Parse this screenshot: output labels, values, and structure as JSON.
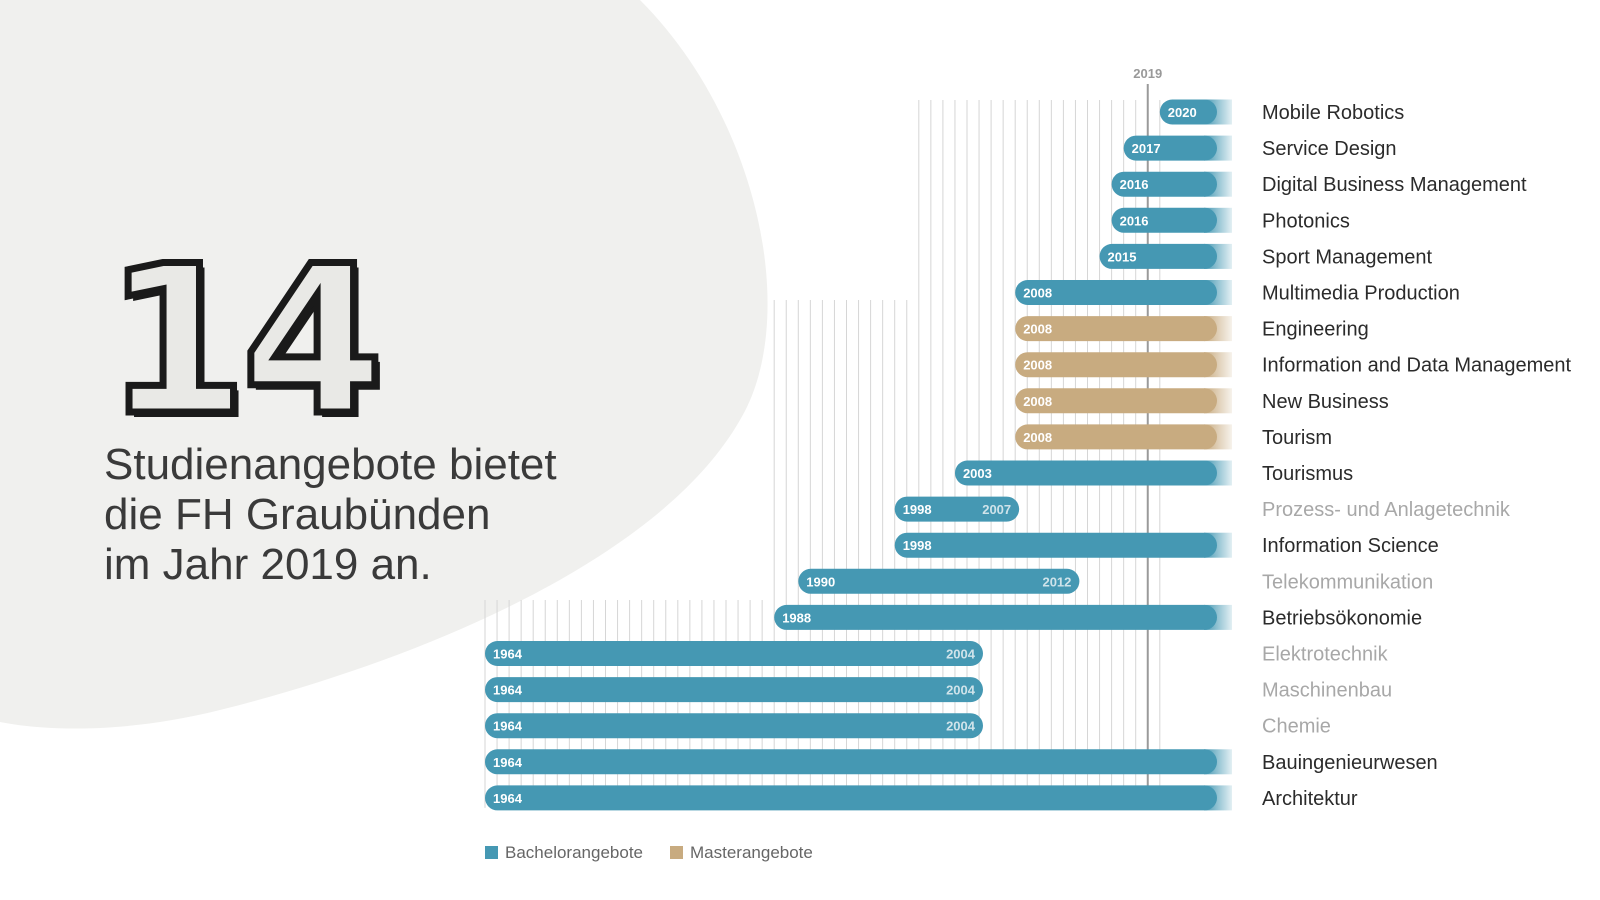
{
  "headline": {
    "number": "14",
    "line1": "Studienangebote bietet",
    "line2": "die FH Graubünden",
    "line3": "im Jahr 2019 an."
  },
  "colors": {
    "bachelor": "#4598b3",
    "master": "#c8ab80",
    "blob": "#f0f0ee",
    "gridline": "#d6d6d6",
    "current_year_line": "#9a9a9a"
  },
  "chart_data": {
    "type": "bar",
    "orientation": "horizontal",
    "x_min": 1964,
    "x_max": 2020,
    "current_year": 2019,
    "current_year_label": "2019",
    "grid": true,
    "legend_position": "bottom-left",
    "legend": [
      {
        "label": "Bachelorangebote",
        "kind": "bachelor"
      },
      {
        "label": "Masterangebote",
        "kind": "master"
      }
    ],
    "rows": [
      {
        "label": "Mobile Robotics",
        "start": 2020,
        "start_label": "2020",
        "end": null,
        "end_label": "",
        "kind": "bachelor",
        "active": true
      },
      {
        "label": "Service Design",
        "start": 2017,
        "start_label": "2017",
        "end": null,
        "end_label": "",
        "kind": "bachelor",
        "active": true
      },
      {
        "label": "Digital Business Management",
        "start": 2016,
        "start_label": "2016",
        "end": null,
        "end_label": "",
        "kind": "bachelor",
        "active": true
      },
      {
        "label": "Photonics",
        "start": 2016,
        "start_label": "2016",
        "end": null,
        "end_label": "",
        "kind": "bachelor",
        "active": true
      },
      {
        "label": "Sport Management",
        "start": 2015,
        "start_label": "2015",
        "end": null,
        "end_label": "",
        "kind": "bachelor",
        "active": true
      },
      {
        "label": "Multimedia Production",
        "start": 2008,
        "start_label": "2008",
        "end": null,
        "end_label": "",
        "kind": "bachelor",
        "active": true
      },
      {
        "label": "Engineering",
        "start": 2008,
        "start_label": "2008",
        "end": null,
        "end_label": "",
        "kind": "master",
        "active": true
      },
      {
        "label": "Information and Data Management",
        "start": 2008,
        "start_label": "2008",
        "end": null,
        "end_label": "",
        "kind": "master",
        "active": true
      },
      {
        "label": "New Business",
        "start": 2008,
        "start_label": "2008",
        "end": null,
        "end_label": "",
        "kind": "master",
        "active": true
      },
      {
        "label": "Tourism",
        "start": 2008,
        "start_label": "2008",
        "end": null,
        "end_label": "",
        "kind": "master",
        "active": true
      },
      {
        "label": "Tourismus",
        "start": 2003,
        "start_label": "2003",
        "end": null,
        "end_label": "",
        "kind": "bachelor",
        "active": true
      },
      {
        "label": "Prozess- und Anlagetechnik",
        "start": 1998,
        "start_label": "1998",
        "end": 2007,
        "end_label": "2007",
        "kind": "bachelor",
        "active": false
      },
      {
        "label": "Information Science",
        "start": 1998,
        "start_label": "1998",
        "end": null,
        "end_label": "",
        "kind": "bachelor",
        "active": true
      },
      {
        "label": "Telekommunikation",
        "start": 1990,
        "start_label": "1990",
        "end": 2012,
        "end_label": "2012",
        "kind": "bachelor",
        "active": false
      },
      {
        "label": "Betriebsökonomie",
        "start": 1988,
        "start_label": "1988",
        "end": null,
        "end_label": "",
        "kind": "bachelor",
        "active": true
      },
      {
        "label": "Elektrotechnik",
        "start": 1964,
        "start_label": "1964",
        "end": 2004,
        "end_label": "2004",
        "kind": "bachelor",
        "active": false
      },
      {
        "label": "Maschinenbau",
        "start": 1964,
        "start_label": "1964",
        "end": 2004,
        "end_label": "2004",
        "kind": "bachelor",
        "active": false
      },
      {
        "label": "Chemie",
        "start": 1964,
        "start_label": "1964",
        "end": 2004,
        "end_label": "2004",
        "kind": "bachelor",
        "active": false
      },
      {
        "label": "Bauingenieurwesen",
        "start": 1964,
        "start_label": "1964",
        "end": null,
        "end_label": "",
        "kind": "bachelor",
        "active": true
      },
      {
        "label": "Architektur",
        "start": 1964,
        "start_label": "1964",
        "end": null,
        "end_label": "",
        "kind": "bachelor",
        "active": true
      }
    ]
  }
}
